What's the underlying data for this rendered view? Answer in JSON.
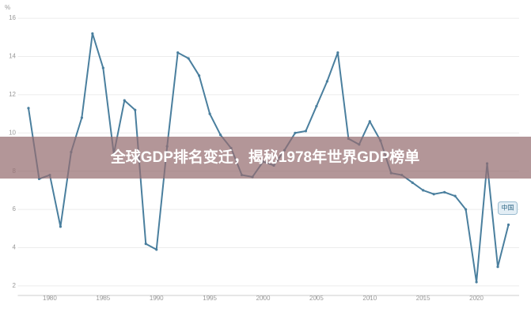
{
  "chart_data": {
    "type": "line",
    "title": "全球GDP排名变迁，揭秘1978年世界GDP榜单",
    "y_label": "%",
    "x": [
      1978,
      1979,
      1980,
      1981,
      1982,
      1983,
      1984,
      1985,
      1986,
      1987,
      1988,
      1989,
      1990,
      1991,
      1992,
      1993,
      1994,
      1995,
      1996,
      1997,
      1998,
      1999,
      2000,
      2001,
      2002,
      2003,
      2004,
      2005,
      2006,
      2007,
      2008,
      2009,
      2010,
      2011,
      2012,
      2013,
      2014,
      2015,
      2016,
      2017,
      2018,
      2019,
      2020,
      2021,
      2022,
      2023
    ],
    "series": [
      {
        "name": "中国",
        "color": "#4a7f9e",
        "values": [
          11.3,
          7.6,
          7.8,
          5.1,
          9.0,
          10.8,
          15.2,
          13.4,
          8.9,
          11.7,
          11.2,
          4.2,
          3.9,
          9.3,
          14.2,
          13.9,
          13.0,
          11.0,
          9.9,
          9.2,
          7.8,
          7.7,
          8.5,
          8.3,
          9.1,
          10.0,
          10.1,
          11.4,
          12.7,
          14.2,
          9.7,
          9.4,
          10.6,
          9.6,
          7.9,
          7.8,
          7.4,
          7.0,
          6.8,
          6.9,
          6.7,
          6.0,
          2.2,
          8.4,
          3.0,
          5.2
        ]
      }
    ],
    "xlim": [
      1977,
      2024
    ],
    "ylim": [
      1.5,
      16.5
    ],
    "xticks": [
      1980,
      1985,
      1990,
      1995,
      2000,
      2005,
      2010,
      2015,
      2020
    ],
    "yticks": [
      2,
      4,
      6,
      8,
      10,
      12,
      14,
      16
    ],
    "grid": true
  }
}
